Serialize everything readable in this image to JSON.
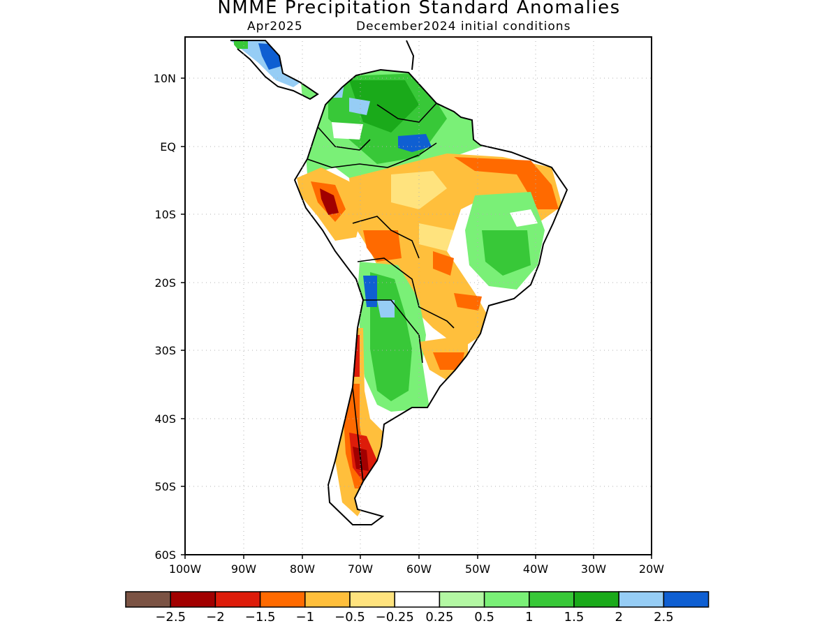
{
  "title": "NMME Precipitation Standard Anomalies",
  "subtitle_left": "Apr2025",
  "subtitle_right": "December2024 initial conditions",
  "lat_labels": [
    "10N",
    "EQ",
    "10S",
    "20S",
    "30S",
    "40S",
    "50S",
    "60S"
  ],
  "lon_labels": [
    "100W",
    "90W",
    "80W",
    "70W",
    "60W",
    "50W",
    "40W",
    "30W",
    "20W"
  ],
  "colorbar": {
    "colors": [
      "#7b5344",
      "#a10000",
      "#dd1c0a",
      "#ff6a00",
      "#ffbf3c",
      "#ffe37e",
      "#ffffff",
      "#b3f7a3",
      "#7af077",
      "#38c838",
      "#1aaa1a",
      "#96cdf5",
      "#0f5fd2"
    ],
    "labels": [
      "−2.5",
      "−2",
      "−1.5",
      "−1",
      "−0.5",
      "−0.25",
      "0.25",
      "0.5",
      "1",
      "1.5",
      "2",
      "2.5"
    ]
  },
  "map_colors": {
    "land_outline": "#000000",
    "grid": "#b0b0b0"
  }
}
